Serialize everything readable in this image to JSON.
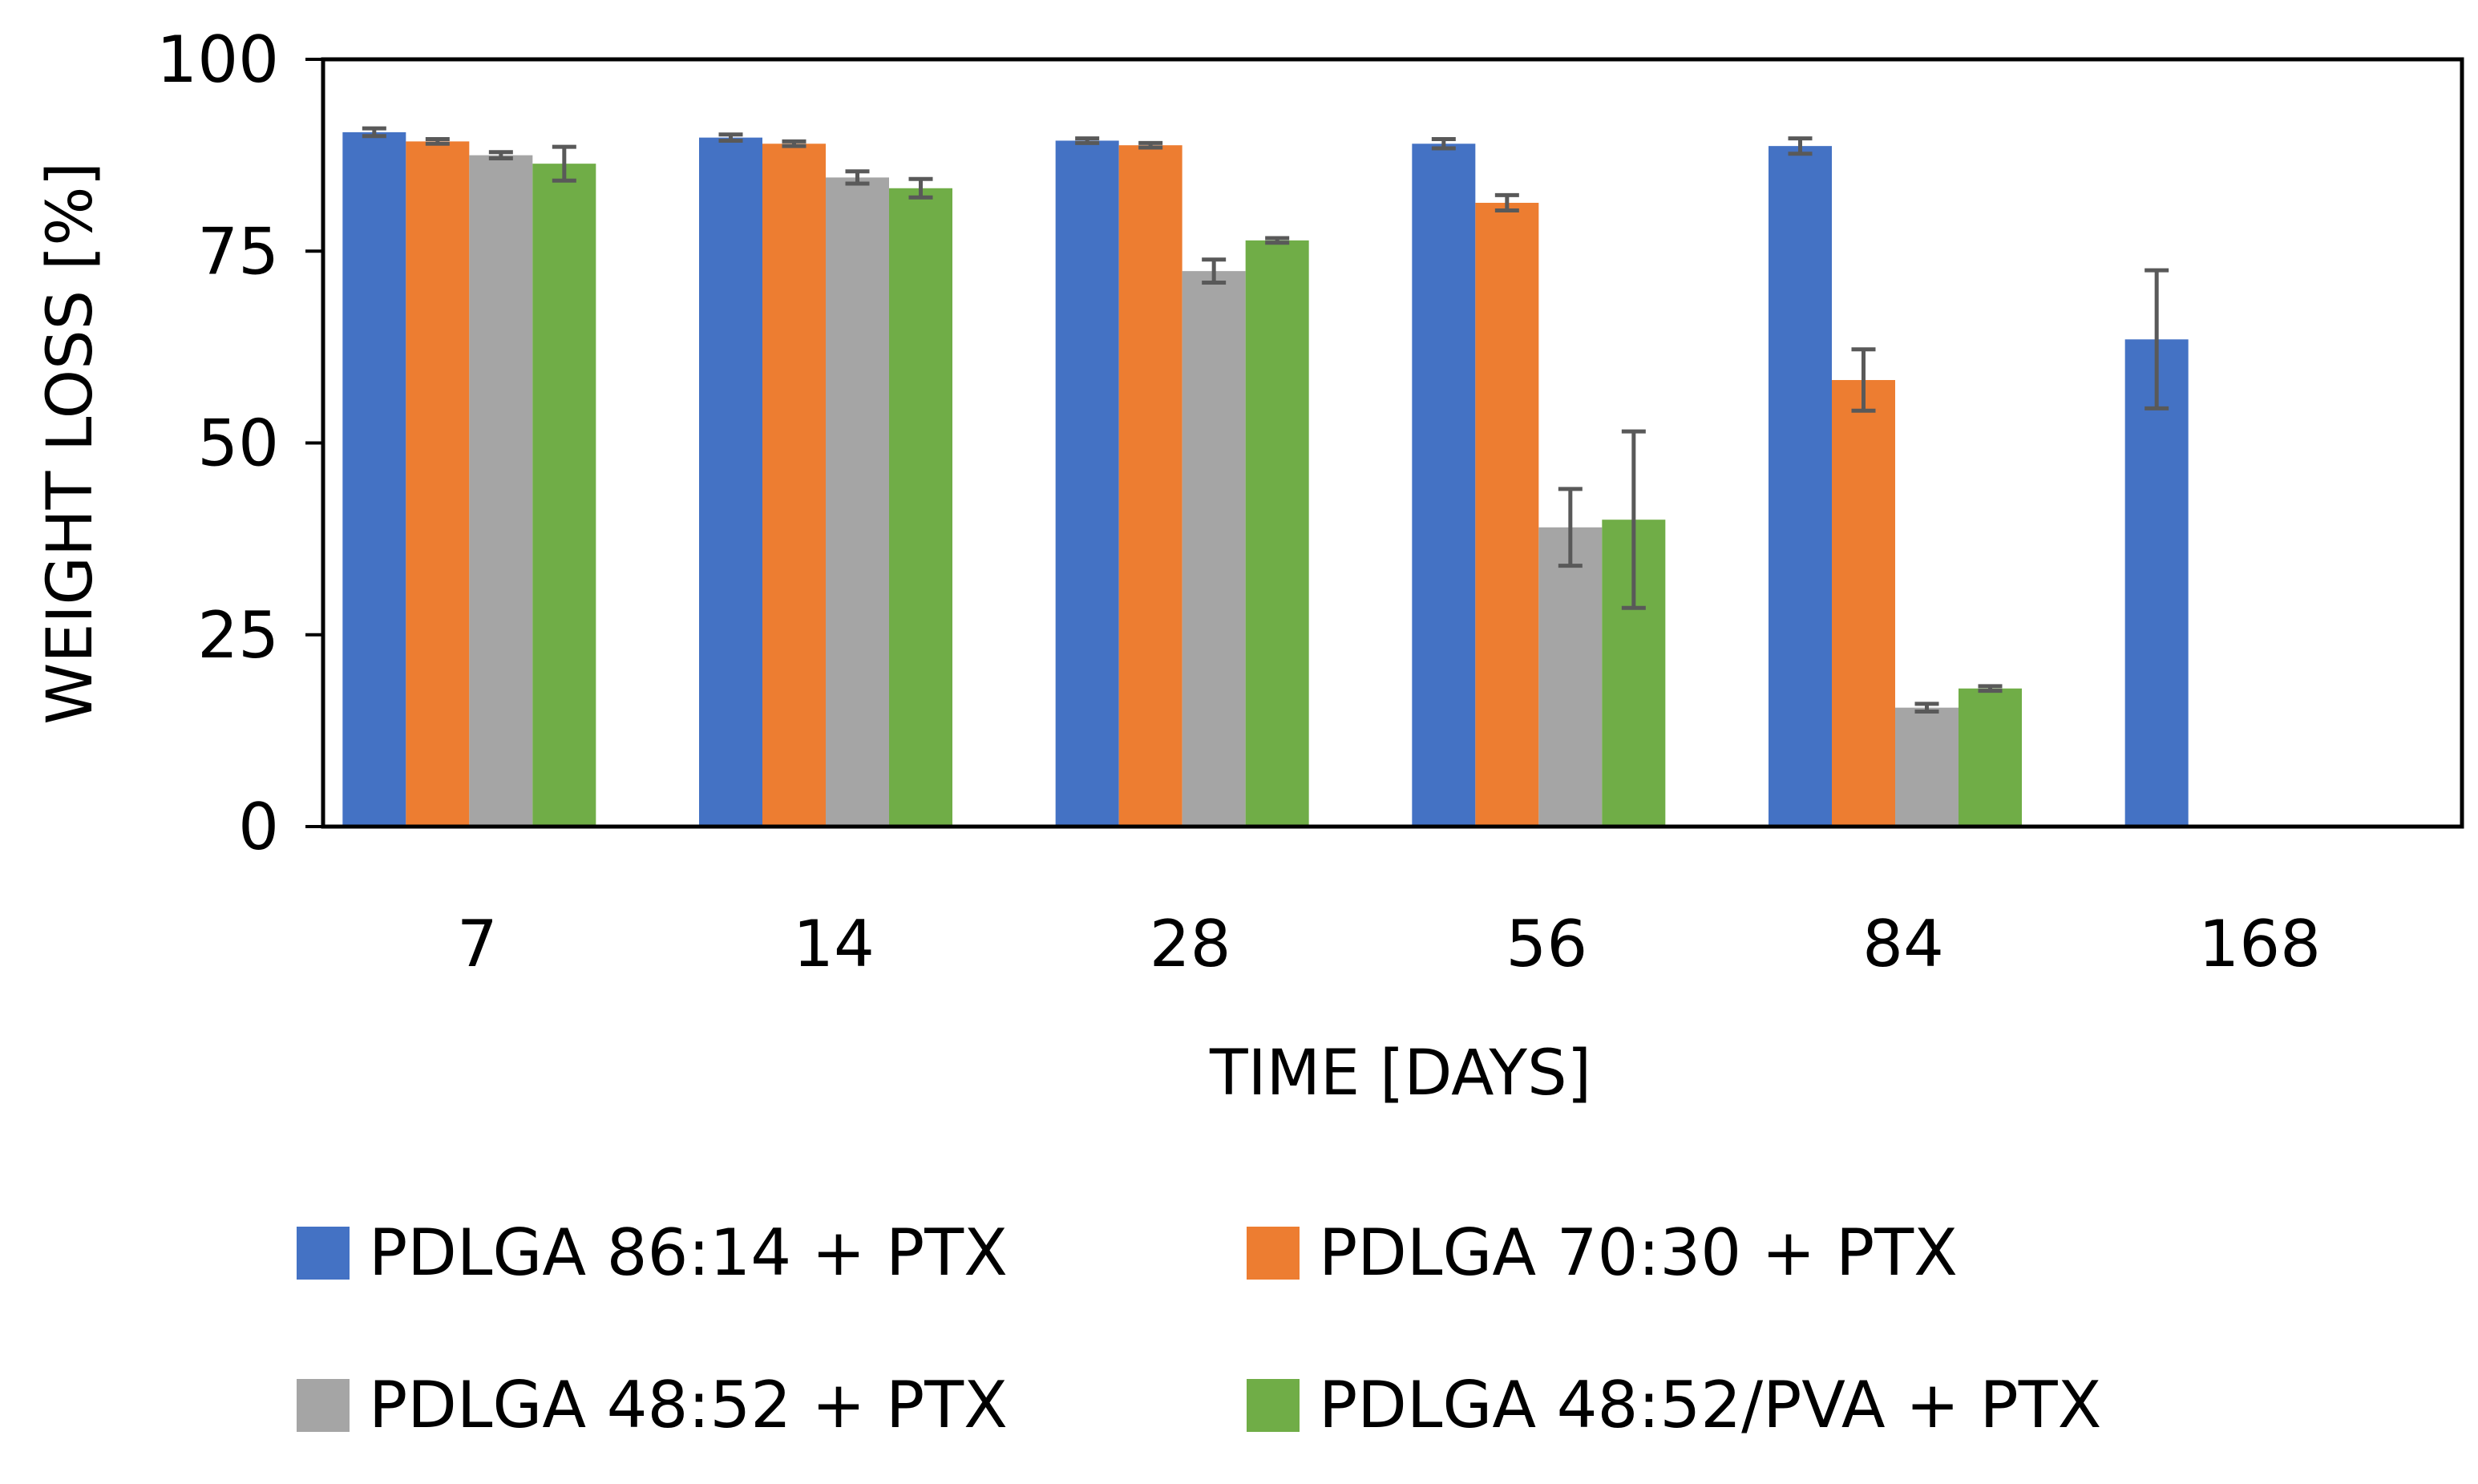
{
  "chart_data": {
    "type": "bar",
    "title": "",
    "xlabel": "TIME  [DAYS]",
    "ylabel": "WEIGHT LOSS [%]",
    "ylim": [
      0,
      100
    ],
    "yticks": [
      "0",
      "25",
      "50",
      "75",
      "100"
    ],
    "categories": [
      "7",
      "14",
      "28",
      "56",
      "84",
      "168"
    ],
    "legend_position": "bottom",
    "series": [
      {
        "name": "PDLGA 86:14 + PTX",
        "color": "#4472C4",
        "values": [
          90.5,
          89.8,
          89.4,
          89.0,
          88.7,
          63.5
        ],
        "errors": [
          0.5,
          0.4,
          0.3,
          0.6,
          1.0,
          9.0
        ]
      },
      {
        "name": "PDLGA 70:30 + PTX",
        "color": "#ED7D31",
        "values": [
          89.3,
          89.0,
          88.8,
          81.3,
          58.2,
          null
        ],
        "errors": [
          0.3,
          0.3,
          0.3,
          1.0,
          4.0,
          null
        ]
      },
      {
        "name": "PDLGA 48:52 + PTX",
        "color": "#A5A5A5",
        "values": [
          87.5,
          84.6,
          72.4,
          39.0,
          15.5,
          null
        ],
        "errors": [
          0.4,
          0.8,
          1.5,
          5.0,
          0.5,
          null
        ]
      },
      {
        "name": "PDLGA 48:52/PVA + PTX",
        "color": "#70AD47",
        "values": [
          86.4,
          83.2,
          76.4,
          40.0,
          18.0,
          null
        ],
        "errors": [
          2.2,
          1.2,
          0.3,
          11.5,
          0.3,
          null
        ]
      }
    ]
  }
}
